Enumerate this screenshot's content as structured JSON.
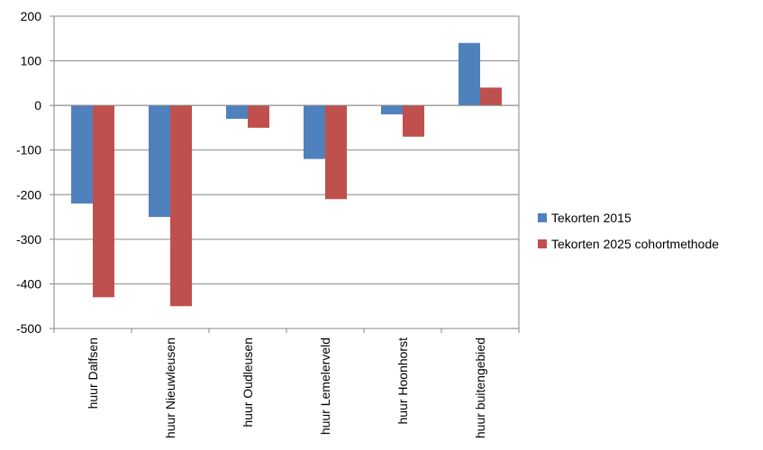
{
  "chart_data": {
    "type": "bar",
    "title": "",
    "xlabel": "",
    "ylabel": "",
    "categories": [
      "huur Dalfsen",
      "huur Nieuwleusen",
      "huur Oudleusen",
      "huur Lemelerveld",
      "huur Hoonhorst",
      "huur buitengebied"
    ],
    "series": [
      {
        "name": "Tekorten 2015",
        "values": [
          -220,
          -250,
          -30,
          -120,
          -20,
          140
        ],
        "color": "#4F81BD"
      },
      {
        "name": "Tekorten 2025 cohortmethode",
        "values": [
          -430,
          -450,
          -50,
          -210,
          -70,
          40
        ],
        "color": "#C0504D"
      }
    ],
    "ylim": [
      -500,
      200
    ],
    "yticks": [
      200,
      100,
      0,
      -100,
      -200,
      -300,
      -400,
      -500
    ],
    "grid": true,
    "legend_position": "right"
  }
}
